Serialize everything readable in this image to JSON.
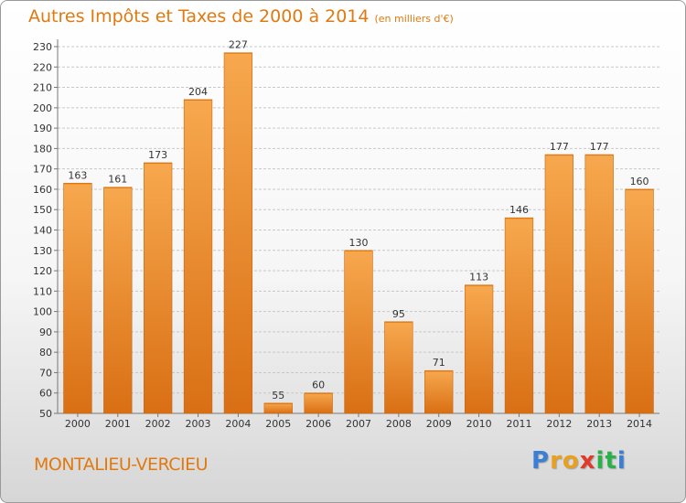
{
  "title": {
    "main": "Autres Impôts et Taxes de 2000 à 2014",
    "unit": "(en milliers d'€)"
  },
  "commune": "MONTALIEU-VERCIEU",
  "brand": {
    "letters": [
      "P",
      "r",
      "o",
      "x",
      "i",
      "t",
      "i"
    ],
    "colors": [
      "#3a7fd5",
      "#e8a020",
      "#e8a020",
      "#e03a2a",
      "#2bb04a",
      "#2bb04a",
      "#3a7fd5"
    ]
  },
  "colors": {
    "bar_top": "#f7a84e",
    "bar_bottom": "#d96f14",
    "accent": "#e07a10"
  },
  "chart_data": {
    "type": "bar",
    "categories": [
      "2000",
      "2001",
      "2002",
      "2003",
      "2004",
      "2005",
      "2006",
      "2007",
      "2008",
      "2009",
      "2010",
      "2011",
      "2012",
      "2013",
      "2014"
    ],
    "values": [
      163,
      161,
      173,
      204,
      227,
      55,
      60,
      130,
      95,
      71,
      113,
      146,
      177,
      177,
      160
    ],
    "ylim": [
      50,
      230
    ],
    "yticks": [
      50,
      60,
      70,
      80,
      90,
      100,
      110,
      120,
      130,
      140,
      150,
      160,
      170,
      180,
      190,
      200,
      210,
      220,
      230
    ],
    "grid": true
  }
}
